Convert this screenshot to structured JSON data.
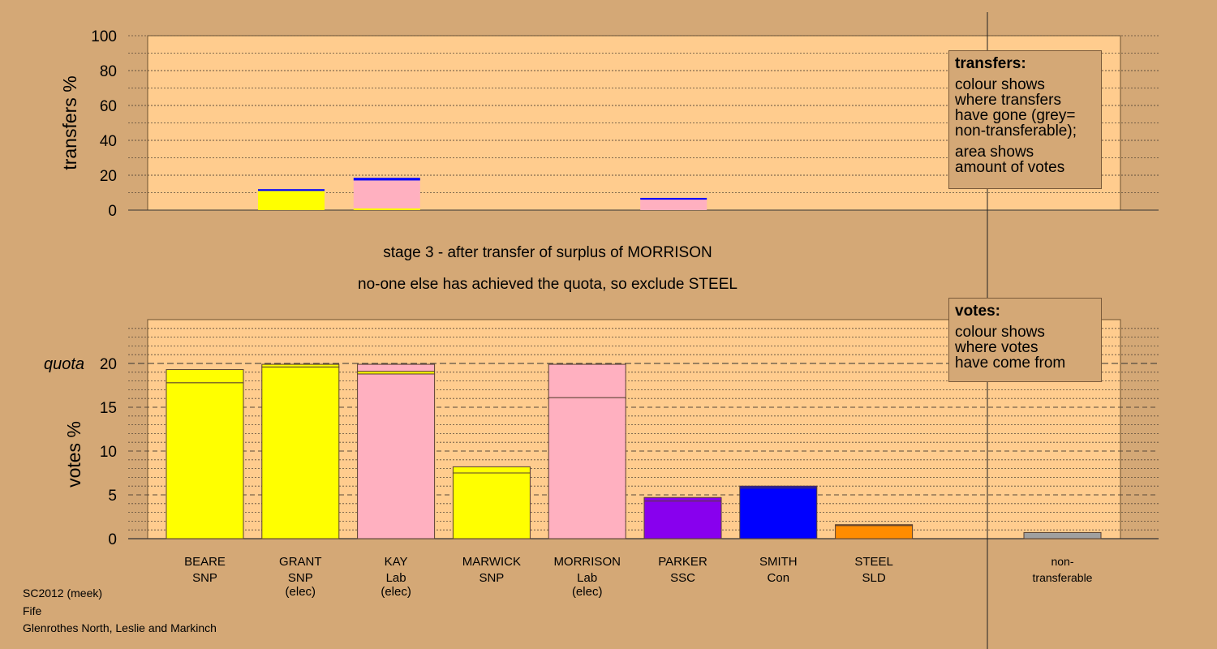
{
  "colors": {
    "background": "#d4a876",
    "plot_background": "#ffcc8e",
    "SNP": "#ffff00",
    "Lab": "#ffb0c0",
    "SSC": "#8800ee",
    "Con": "#0000ff",
    "SLD": "#ff8c00",
    "nontransferable": "#a0a0a0"
  },
  "stage": {
    "title": "stage 3 - after transfer of surplus of MORRISON",
    "note": "no-one else has achieved the quota, so exclude STEEL"
  },
  "legend_transfers": {
    "title": "transfers:",
    "p1": "colour shows\nwhere transfers\nhave gone (grey=\nnon-transferable);",
    "p2": "area shows\namount of votes"
  },
  "legend_votes": {
    "title": "votes:",
    "p1": "colour shows\nwhere votes\nhave come from"
  },
  "footer": {
    "line1": "SC2012 (meek)",
    "line2": "Fife",
    "line3": "Glenrothes North, Leslie and Markinch"
  },
  "chart_data": [
    {
      "type": "bar",
      "ylabel": "transfers %",
      "ylim": [
        0,
        100
      ],
      "yticks": [
        0,
        20,
        40,
        60,
        80,
        100
      ],
      "grid": true,
      "bars": [
        {
          "candidate": "GRANT",
          "segments": [
            {
              "party": "SNP",
              "value": 7
            },
            {
              "party": "SNP",
              "value": 4
            },
            {
              "party": "Con",
              "value": 1
            }
          ]
        },
        {
          "candidate": "KAY",
          "segments": [
            {
              "party": "SNP",
              "value": 1
            },
            {
              "party": "Lab",
              "value": 16
            },
            {
              "party": "Con",
              "value": 1.5
            }
          ]
        },
        {
          "candidate": "PARKER",
          "segments": [
            {
              "party": "Lab",
              "value": 6
            },
            {
              "party": "Con",
              "value": 1
            }
          ]
        }
      ]
    },
    {
      "type": "bar",
      "ylabel": "votes %",
      "ylim": [
        0,
        25
      ],
      "yticks": [
        0,
        5,
        10,
        15,
        20
      ],
      "quota": 20,
      "quota_label": "quota",
      "grid": true,
      "candidates": [
        {
          "name": "BEARE",
          "party": "SNP",
          "status": "",
          "segments": [
            {
              "party": "SNP",
              "value": 17.8
            },
            {
              "party": "SNP",
              "value": 1.5
            }
          ]
        },
        {
          "name": "GRANT",
          "party": "SNP",
          "status": "(elec)",
          "segments": [
            {
              "party": "SNP",
              "value": 19.6
            },
            {
              "party": "SNP",
              "value": 0.3
            }
          ]
        },
        {
          "name": "KAY",
          "party": "Lab",
          "status": "(elec)",
          "segments": [
            {
              "party": "Lab",
              "value": 18.8
            },
            {
              "party": "SNP",
              "value": 0.3
            },
            {
              "party": "Lab",
              "value": 0.8
            }
          ]
        },
        {
          "name": "MARWICK",
          "party": "SNP",
          "status": "",
          "segments": [
            {
              "party": "SNP",
              "value": 7.5
            },
            {
              "party": "SNP",
              "value": 0.7
            }
          ]
        },
        {
          "name": "MORRISON",
          "party": "Lab",
          "status": "(elec)",
          "segments": [
            {
              "party": "Lab",
              "value": 16.1
            },
            {
              "party": "Lab",
              "value": 3.8
            }
          ]
        },
        {
          "name": "PARKER",
          "party": "SSC",
          "status": "",
          "segments": [
            {
              "party": "SSC",
              "value": 4.3
            },
            {
              "party": "SSC",
              "value": 0.4
            }
          ]
        },
        {
          "name": "SMITH",
          "party": "Con",
          "status": "",
          "segments": [
            {
              "party": "Con",
              "value": 5.8
            },
            {
              "party": "Con",
              "value": 0.2
            }
          ]
        },
        {
          "name": "STEEL",
          "party": "SLD",
          "status": "",
          "segments": [
            {
              "party": "SLD",
              "value": 1.5
            },
            {
              "party": "SLD",
              "value": 0.1
            }
          ]
        }
      ],
      "nontransferable": {
        "label_top": "non-",
        "label_bottom": "transferable",
        "value": 0.7
      }
    }
  ]
}
